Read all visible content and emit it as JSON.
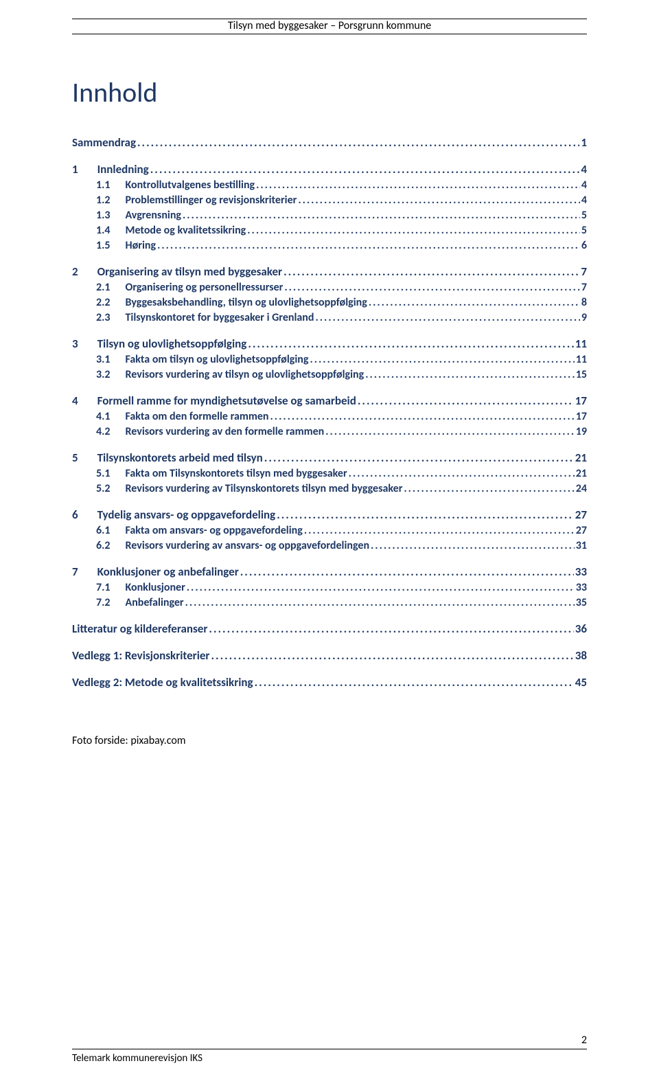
{
  "header": {
    "text": "Tilsyn med byggesaker – Porsgrunn kommune"
  },
  "title": "Innhold",
  "toc": [
    {
      "level": 0,
      "num": "",
      "label": "Sammendrag",
      "page": "1"
    },
    {
      "level": 1,
      "num": "1",
      "label": "Innledning",
      "page": "4"
    },
    {
      "level": 2,
      "num": "1.1",
      "label": "Kontrollutvalgenes bestilling",
      "page": "4"
    },
    {
      "level": 2,
      "num": "1.2",
      "label": "Problemstillinger og revisjonskriterier",
      "page": "4"
    },
    {
      "level": 2,
      "num": "1.3",
      "label": "Avgrensning",
      "page": "5"
    },
    {
      "level": 2,
      "num": "1.4",
      "label": "Metode og kvalitetssikring",
      "page": "5"
    },
    {
      "level": 2,
      "num": "1.5",
      "label": "Høring",
      "page": "6"
    },
    {
      "level": 1,
      "num": "2",
      "label": "Organisering av tilsyn med byggesaker",
      "page": "7"
    },
    {
      "level": 2,
      "num": "2.1",
      "label": "Organisering og personellressurser",
      "page": "7"
    },
    {
      "level": 2,
      "num": "2.2",
      "label": "Byggesaksbehandling, tilsyn og ulovlighetsoppfølging",
      "page": "8"
    },
    {
      "level": 2,
      "num": "2.3",
      "label": "Tilsynskontoret for byggesaker i Grenland",
      "page": "9"
    },
    {
      "level": 1,
      "num": "3",
      "label": "Tilsyn og ulovlighetsoppfølging",
      "page": "11"
    },
    {
      "level": 2,
      "num": "3.1",
      "label": "Fakta om tilsyn og ulovlighetsoppfølging",
      "page": "11"
    },
    {
      "level": 2,
      "num": "3.2",
      "label": "Revisors vurdering av tilsyn og ulovlighetsoppfølging",
      "page": "15"
    },
    {
      "level": 1,
      "num": "4",
      "label": "Formell ramme for myndighetsutøvelse og samarbeid",
      "page": "17"
    },
    {
      "level": 2,
      "num": "4.1",
      "label": "Fakta om den formelle rammen",
      "page": "17"
    },
    {
      "level": 2,
      "num": "4.2",
      "label": "Revisors vurdering av den formelle rammen",
      "page": "19"
    },
    {
      "level": 1,
      "num": "5",
      "label": "Tilsynskontorets arbeid med tilsyn",
      "page": "21"
    },
    {
      "level": 2,
      "num": "5.1",
      "label": "Fakta om Tilsynskontorets tilsyn med byggesaker",
      "page": "21"
    },
    {
      "level": 2,
      "num": "5.2",
      "label": "Revisors vurdering av Tilsynskontorets tilsyn med byggesaker",
      "page": "24"
    },
    {
      "level": 1,
      "num": "6",
      "label": "Tydelig ansvars- og oppgavefordeling",
      "page": "27"
    },
    {
      "level": 2,
      "num": "6.1",
      "label": "Fakta om ansvars- og oppgavefordeling",
      "page": "27"
    },
    {
      "level": 2,
      "num": "6.2",
      "label": "Revisors vurdering av ansvars- og oppgavefordelingen",
      "page": "31"
    },
    {
      "level": 1,
      "num": "7",
      "label": "Konklusjoner og anbefalinger",
      "page": "33"
    },
    {
      "level": 2,
      "num": "7.1",
      "label": "Konklusjoner",
      "page": "33"
    },
    {
      "level": 2,
      "num": "7.2",
      "label": "Anbefalinger",
      "page": "35"
    },
    {
      "level": 0,
      "num": "",
      "label": "Litteratur og kildereferanser",
      "page": "36"
    },
    {
      "level": 0,
      "num": "",
      "label": "Vedlegg 1: Revisjonskriterier",
      "page": "38"
    },
    {
      "level": 0,
      "num": "",
      "label": "Vedlegg 2: Metode og kvalitetssikring",
      "page": "45"
    }
  ],
  "photo_credit": "Foto forside: pixabay.com",
  "footer": {
    "left": "Telemark kommunerevisjon IKS",
    "page_number": "2"
  },
  "colors": {
    "heading": "#1f3864",
    "text": "#000000",
    "background": "#ffffff"
  }
}
